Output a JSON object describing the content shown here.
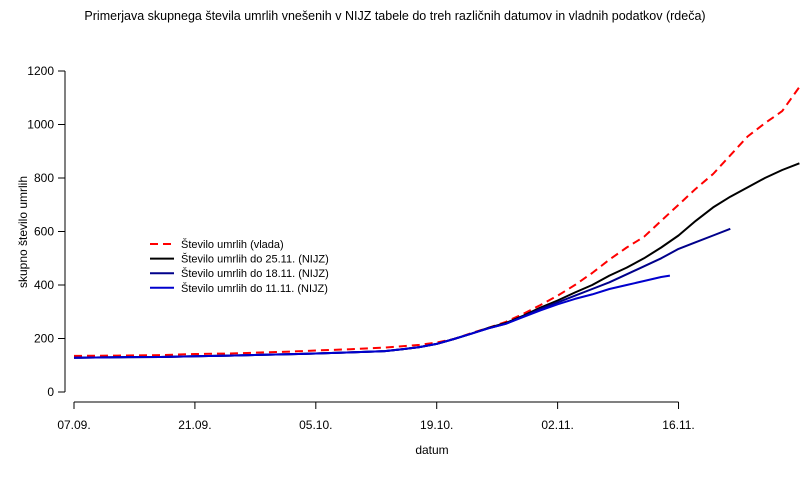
{
  "chart_data": {
    "type": "line",
    "title": "Primerjava skupnega števila umrlih vnešenih v NIJZ tabele do treh različnih datumov in vladnih podatkov (rdeča)",
    "xlabel": "datum",
    "ylabel": "skupno število umrlih",
    "ylim": [
      0,
      1240
    ],
    "xlim": [
      0,
      86
    ],
    "yticks": [
      0,
      200,
      400,
      600,
      800,
      1000,
      1200
    ],
    "xticks": [
      {
        "day": 0,
        "label": "07.09."
      },
      {
        "day": 14,
        "label": "21.09."
      },
      {
        "day": 28,
        "label": "05.10."
      },
      {
        "day": 42,
        "label": "19.10."
      },
      {
        "day": 56,
        "label": "02.11."
      },
      {
        "day": 70,
        "label": "16.11."
      }
    ],
    "legend_position": "middle-left",
    "series": [
      {
        "name": "Število umrlih (vlada)",
        "color": "#ff0000",
        "dash": "dashed",
        "points": [
          [
            0,
            135
          ],
          [
            5,
            136
          ],
          [
            10,
            138
          ],
          [
            14,
            142
          ],
          [
            18,
            144
          ],
          [
            22,
            148
          ],
          [
            26,
            152
          ],
          [
            28,
            155
          ],
          [
            32,
            160
          ],
          [
            36,
            166
          ],
          [
            40,
            176
          ],
          [
            42,
            185
          ],
          [
            44,
            198
          ],
          [
            46,
            220
          ],
          [
            48,
            240
          ],
          [
            50,
            262
          ],
          [
            52,
            292
          ],
          [
            54,
            325
          ],
          [
            56,
            360
          ],
          [
            58,
            400
          ],
          [
            60,
            445
          ],
          [
            62,
            495
          ],
          [
            64,
            540
          ],
          [
            66,
            580
          ],
          [
            68,
            640
          ],
          [
            70,
            700
          ],
          [
            72,
            760
          ],
          [
            74,
            815
          ],
          [
            76,
            885
          ],
          [
            78,
            955
          ],
          [
            80,
            1005
          ],
          [
            82,
            1050
          ],
          [
            84,
            1140
          ],
          [
            86,
            1240
          ]
        ]
      },
      {
        "name": "Število umrlih do 25.11. (NIJZ)",
        "color": "#000000",
        "dash": "solid",
        "points": [
          [
            0,
            128
          ],
          [
            5,
            130
          ],
          [
            10,
            131
          ],
          [
            14,
            134
          ],
          [
            18,
            136
          ],
          [
            22,
            139
          ],
          [
            26,
            142
          ],
          [
            28,
            144
          ],
          [
            32,
            148
          ],
          [
            36,
            153
          ],
          [
            38,
            160
          ],
          [
            40,
            168
          ],
          [
            42,
            180
          ],
          [
            44,
            198
          ],
          [
            46,
            218
          ],
          [
            48,
            240
          ],
          [
            50,
            258
          ],
          [
            52,
            285
          ],
          [
            54,
            315
          ],
          [
            56,
            342
          ],
          [
            58,
            372
          ],
          [
            60,
            400
          ],
          [
            62,
            435
          ],
          [
            64,
            465
          ],
          [
            66,
            500
          ],
          [
            68,
            540
          ],
          [
            70,
            585
          ],
          [
            72,
            640
          ],
          [
            74,
            690
          ],
          [
            76,
            730
          ],
          [
            78,
            765
          ],
          [
            80,
            800
          ],
          [
            82,
            830
          ],
          [
            84,
            855
          ]
        ]
      },
      {
        "name": "Število umrlih do 18.11. (NIJZ)",
        "color": "#00008b",
        "dash": "solid",
        "points": [
          [
            0,
            128
          ],
          [
            5,
            130
          ],
          [
            10,
            131
          ],
          [
            14,
            134
          ],
          [
            18,
            136
          ],
          [
            22,
            139
          ],
          [
            26,
            142
          ],
          [
            28,
            144
          ],
          [
            32,
            148
          ],
          [
            36,
            153
          ],
          [
            38,
            160
          ],
          [
            40,
            168
          ],
          [
            42,
            180
          ],
          [
            44,
            198
          ],
          [
            46,
            218
          ],
          [
            48,
            238
          ],
          [
            50,
            255
          ],
          [
            52,
            282
          ],
          [
            54,
            310
          ],
          [
            56,
            335
          ],
          [
            58,
            360
          ],
          [
            60,
            385
          ],
          [
            62,
            410
          ],
          [
            64,
            440
          ],
          [
            66,
            470
          ],
          [
            68,
            500
          ],
          [
            70,
            535
          ],
          [
            72,
            560
          ],
          [
            74,
            585
          ],
          [
            76,
            610
          ]
        ]
      },
      {
        "name": "Število umrlih do 11.11. (NIJZ)",
        "color": "#0000cd",
        "dash": "solid",
        "points": [
          [
            0,
            128
          ],
          [
            5,
            130
          ],
          [
            10,
            131
          ],
          [
            14,
            134
          ],
          [
            18,
            136
          ],
          [
            22,
            139
          ],
          [
            26,
            142
          ],
          [
            28,
            144
          ],
          [
            32,
            148
          ],
          [
            36,
            153
          ],
          [
            38,
            160
          ],
          [
            40,
            168
          ],
          [
            42,
            180
          ],
          [
            44,
            198
          ],
          [
            46,
            218
          ],
          [
            48,
            238
          ],
          [
            50,
            255
          ],
          [
            52,
            280
          ],
          [
            54,
            305
          ],
          [
            56,
            328
          ],
          [
            58,
            348
          ],
          [
            60,
            365
          ],
          [
            62,
            385
          ],
          [
            64,
            400
          ],
          [
            66,
            415
          ],
          [
            68,
            430
          ],
          [
            69,
            435
          ]
        ]
      }
    ]
  }
}
